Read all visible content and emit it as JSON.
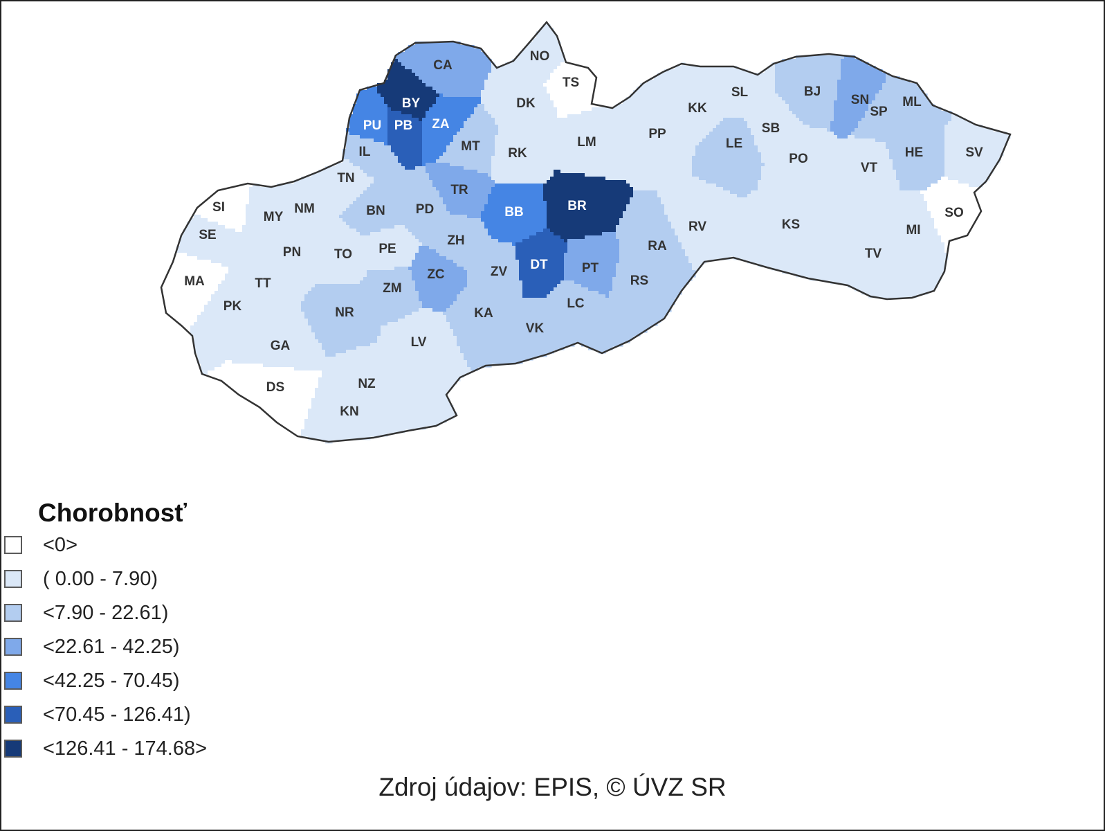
{
  "legend": {
    "title": "Chorobnosť",
    "classes": [
      {
        "label": "<0>",
        "color": "#ffffff"
      },
      {
        "label": "( 0.00 - 7.90)",
        "color": "#dbe8f8"
      },
      {
        "label": "<7.90 - 22.61)",
        "color": "#b3cdf0"
      },
      {
        "label": "<22.61 - 42.25)",
        "color": "#7fa9ea"
      },
      {
        "label": "<42.25 - 70.45)",
        "color": "#4585e4"
      },
      {
        "label": "<70.45 - 126.41)",
        "color": "#2a5fb8"
      },
      {
        "label": "<126.41 - 174.68>",
        "color": "#163a78"
      }
    ]
  },
  "districts": [
    {
      "code": "CA",
      "class": 3
    },
    {
      "code": "NO",
      "class": 1
    },
    {
      "code": "TS",
      "class": 0
    },
    {
      "code": "BY",
      "class": 6
    },
    {
      "code": "DK",
      "class": 1
    },
    {
      "code": "PU",
      "class": 4
    },
    {
      "code": "PB",
      "class": 5
    },
    {
      "code": "ZA",
      "class": 4
    },
    {
      "code": "MT",
      "class": 2
    },
    {
      "code": "IL",
      "class": 2
    },
    {
      "code": "RK",
      "class": 1
    },
    {
      "code": "LM",
      "class": 1
    },
    {
      "code": "TN",
      "class": 1
    },
    {
      "code": "TR",
      "class": 3
    },
    {
      "code": "BB",
      "class": 4
    },
    {
      "code": "BR",
      "class": 6
    },
    {
      "code": "SI",
      "class": 0
    },
    {
      "code": "MY",
      "class": 1
    },
    {
      "code": "NM",
      "class": 1
    },
    {
      "code": "BN",
      "class": 2
    },
    {
      "code": "PD",
      "class": 2
    },
    {
      "code": "SE",
      "class": 1
    },
    {
      "code": "PN",
      "class": 1
    },
    {
      "code": "TO",
      "class": 1
    },
    {
      "code": "PE",
      "class": 1
    },
    {
      "code": "ZH",
      "class": 2
    },
    {
      "code": "DT",
      "class": 5
    },
    {
      "code": "PT",
      "class": 3
    },
    {
      "code": "RA",
      "class": 2
    },
    {
      "code": "MA",
      "class": 0
    },
    {
      "code": "TT",
      "class": 1
    },
    {
      "code": "ZC",
      "class": 3
    },
    {
      "code": "ZV",
      "class": 2
    },
    {
      "code": "RS",
      "class": 2
    },
    {
      "code": "ZM",
      "class": 2
    },
    {
      "code": "PK",
      "class": 1
    },
    {
      "code": "NR",
      "class": 2
    },
    {
      "code": "KA",
      "class": 2
    },
    {
      "code": "LC",
      "class": 2
    },
    {
      "code": "VK",
      "class": 2
    },
    {
      "code": "LV",
      "class": 1
    },
    {
      "code": "GA",
      "class": 1
    },
    {
      "code": "DS",
      "class": 0
    },
    {
      "code": "NZ",
      "class": 1
    },
    {
      "code": "KN",
      "class": 1
    },
    {
      "code": "KK",
      "class": 1
    },
    {
      "code": "SL",
      "class": 1
    },
    {
      "code": "BJ",
      "class": 2
    },
    {
      "code": "SN",
      "class": 3
    },
    {
      "code": "SP",
      "class": 2
    },
    {
      "code": "ML",
      "class": 2
    },
    {
      "code": "PP",
      "class": 1
    },
    {
      "code": "SB",
      "class": 1
    },
    {
      "code": "LE",
      "class": 2
    },
    {
      "code": "PO",
      "class": 1
    },
    {
      "code": "HE",
      "class": 2
    },
    {
      "code": "SV",
      "class": 1
    },
    {
      "code": "VT",
      "class": 1
    },
    {
      "code": "RV",
      "class": 1
    },
    {
      "code": "SO",
      "class": 0
    },
    {
      "code": "KS",
      "class": 1
    },
    {
      "code": "MI",
      "class": 1
    },
    {
      "code": "TV",
      "class": 1
    }
  ],
  "source": "Zdroj údajov: EPIS, © ÚVZ SR"
}
